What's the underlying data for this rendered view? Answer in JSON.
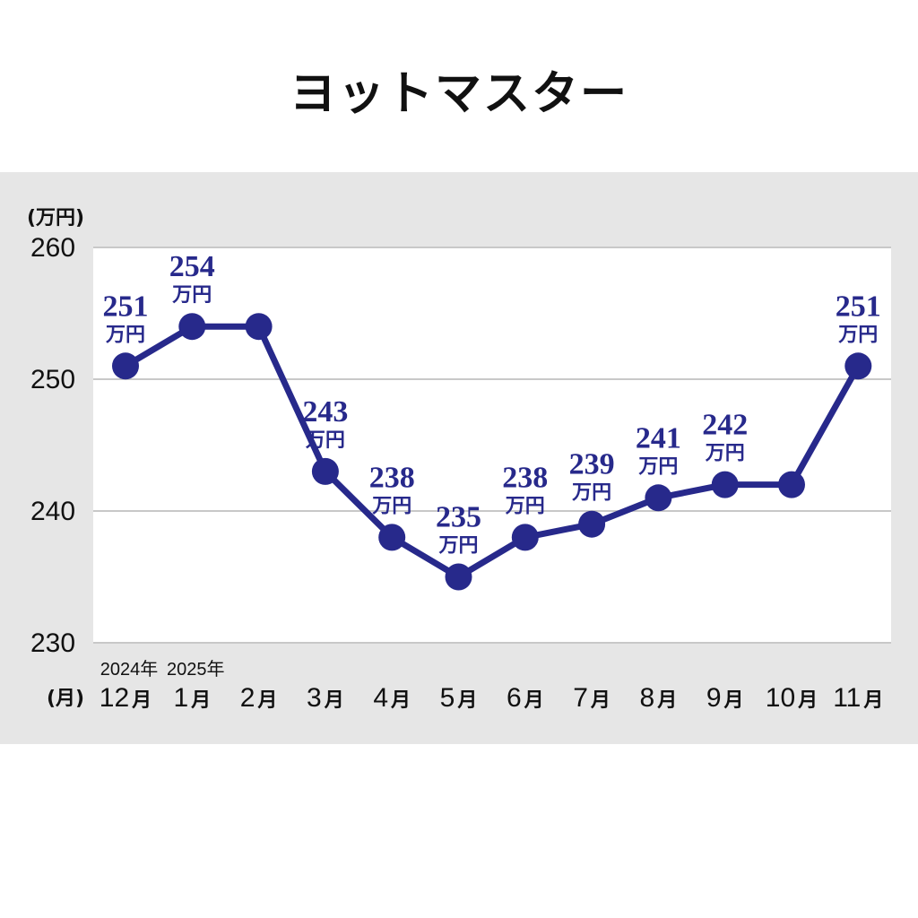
{
  "chart_data": {
    "type": "line",
    "title": "ヨットマスター",
    "ylabel": "(万円)",
    "xlabel": "(月)",
    "ylim": [
      230,
      260
    ],
    "yticks": [
      230,
      240,
      250,
      260
    ],
    "grid": true,
    "categories": [
      "12",
      "1",
      "2",
      "3",
      "4",
      "5",
      "6",
      "7",
      "8",
      "9",
      "10",
      "11"
    ],
    "month_unit": "月",
    "year_labels": [
      {
        "index": 0,
        "text": "2024年"
      },
      {
        "index": 1,
        "text": "2025年"
      }
    ],
    "series": [
      {
        "values": [
          251,
          254,
          254,
          243,
          238,
          235,
          238,
          239,
          241,
          242,
          242,
          251
        ]
      }
    ],
    "data_labels": [
      {
        "index": 0,
        "value": "251",
        "unit": "万円"
      },
      {
        "index": 1,
        "value": "254",
        "unit": "万円"
      },
      {
        "index": 3,
        "value": "243",
        "unit": "万円"
      },
      {
        "index": 4,
        "value": "238",
        "unit": "万円"
      },
      {
        "index": 5,
        "value": "235",
        "unit": "万円"
      },
      {
        "index": 6,
        "value": "238",
        "unit": "万円"
      },
      {
        "index": 7,
        "value": "239",
        "unit": "万円"
      },
      {
        "index": 8,
        "value": "241",
        "unit": "万円"
      },
      {
        "index": 9,
        "value": "242",
        "unit": "万円"
      },
      {
        "index": 11,
        "value": "251",
        "unit": "万円"
      }
    ],
    "colors": {
      "line": "#27298b",
      "panel_bg": "#e6e6e6",
      "plot_bg": "#ffffff",
      "grid": "#c8c8c8"
    }
  }
}
